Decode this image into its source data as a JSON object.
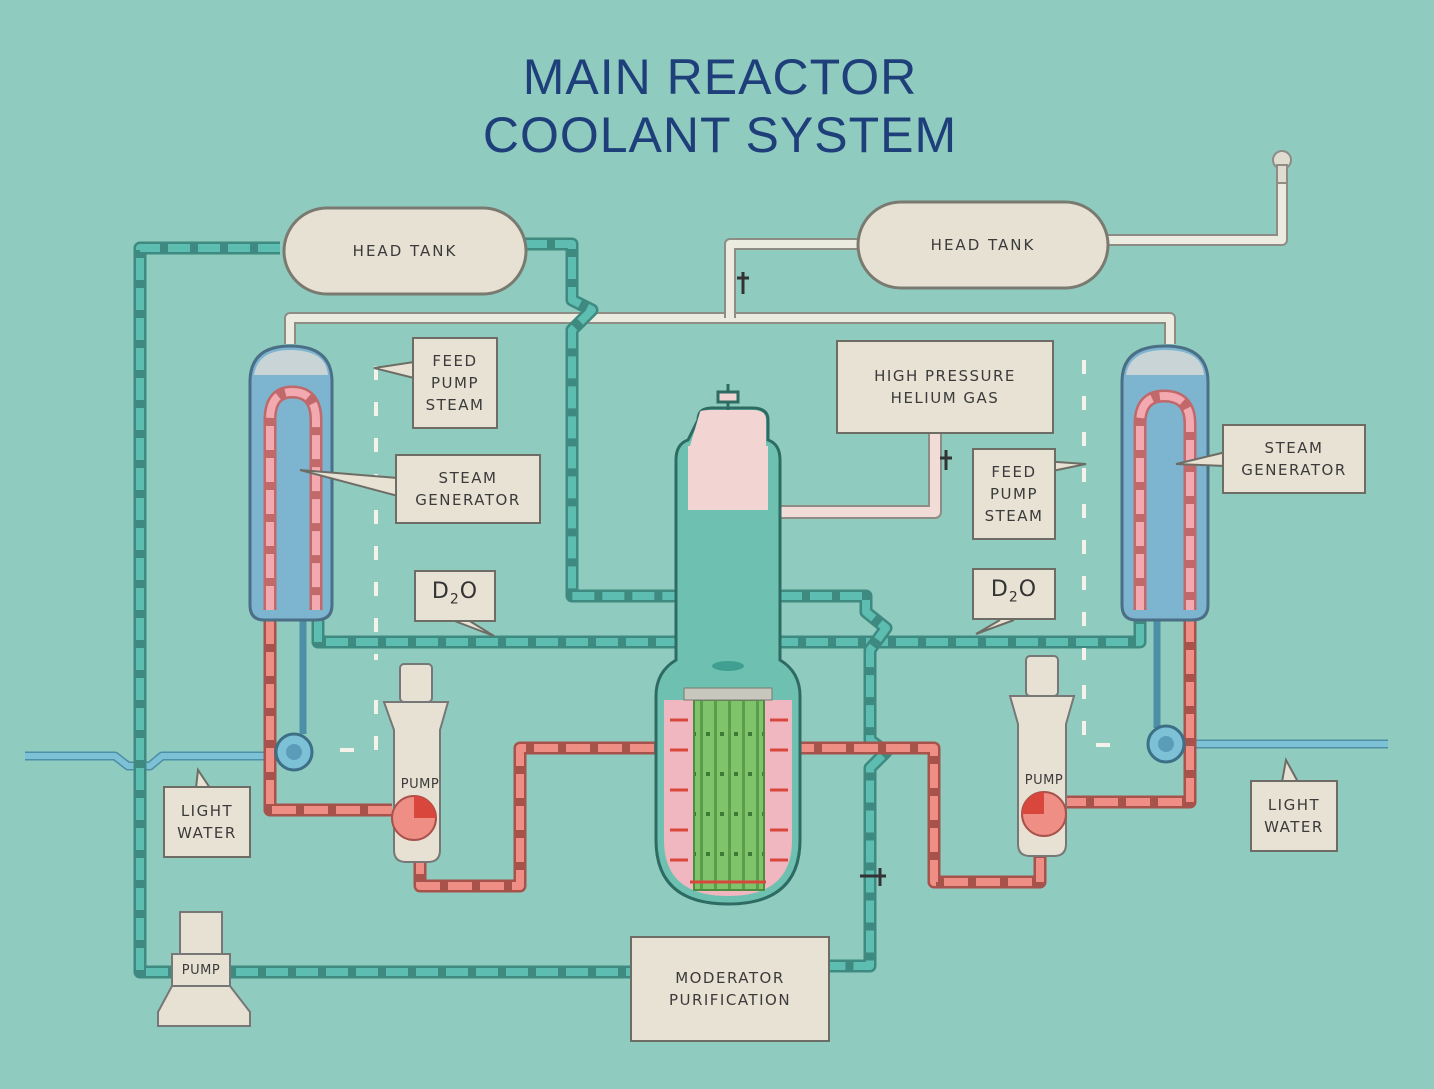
{
  "title": {
    "line1": "MAIN REACTOR",
    "line2": "COOLANT SYSTEM"
  },
  "labels": {
    "head_tank_left": "HEAD TANK",
    "head_tank_right": "HEAD TANK",
    "feed_pump_steam_left": [
      "FEED",
      "PUMP",
      "STEAM"
    ],
    "feed_pump_steam_right": [
      "FEED",
      "PUMP",
      "STEAM"
    ],
    "steam_generator_left": [
      "STEAM",
      "GENERATOR"
    ],
    "steam_generator_right": [
      "STEAM",
      "GENERATOR"
    ],
    "high_pressure_helium": [
      "HIGH PRESSURE",
      "HELIUM GAS"
    ],
    "d2o_left": {
      "main": "D",
      "sub": "2",
      "tail": "O"
    },
    "d2o_right": {
      "main": "D",
      "sub": "2",
      "tail": "O"
    },
    "pump_left": "PUMP",
    "pump_right": "PUMP",
    "pump_bottom": "PUMP",
    "light_water_left": [
      "LIGHT",
      "WATER"
    ],
    "light_water_right": [
      "LIGHT",
      "WATER"
    ],
    "moderator_purification": [
      "MODERATOR",
      "PURIFICATION"
    ]
  },
  "colors": {
    "background": "#8fcbbf",
    "d2o_pipe": "#4db3a6",
    "hot_pipe": "#ef8e84",
    "hot_dash": "#d9473c",
    "light_water_pipe": "#6fb6cc",
    "helium_pipe": "#ecebe0",
    "generator_fill": "#7db4cf",
    "tank_fill": "#e7e1d3",
    "core_green": "#7fc46a",
    "title_blue": "#1e3f7a"
  }
}
